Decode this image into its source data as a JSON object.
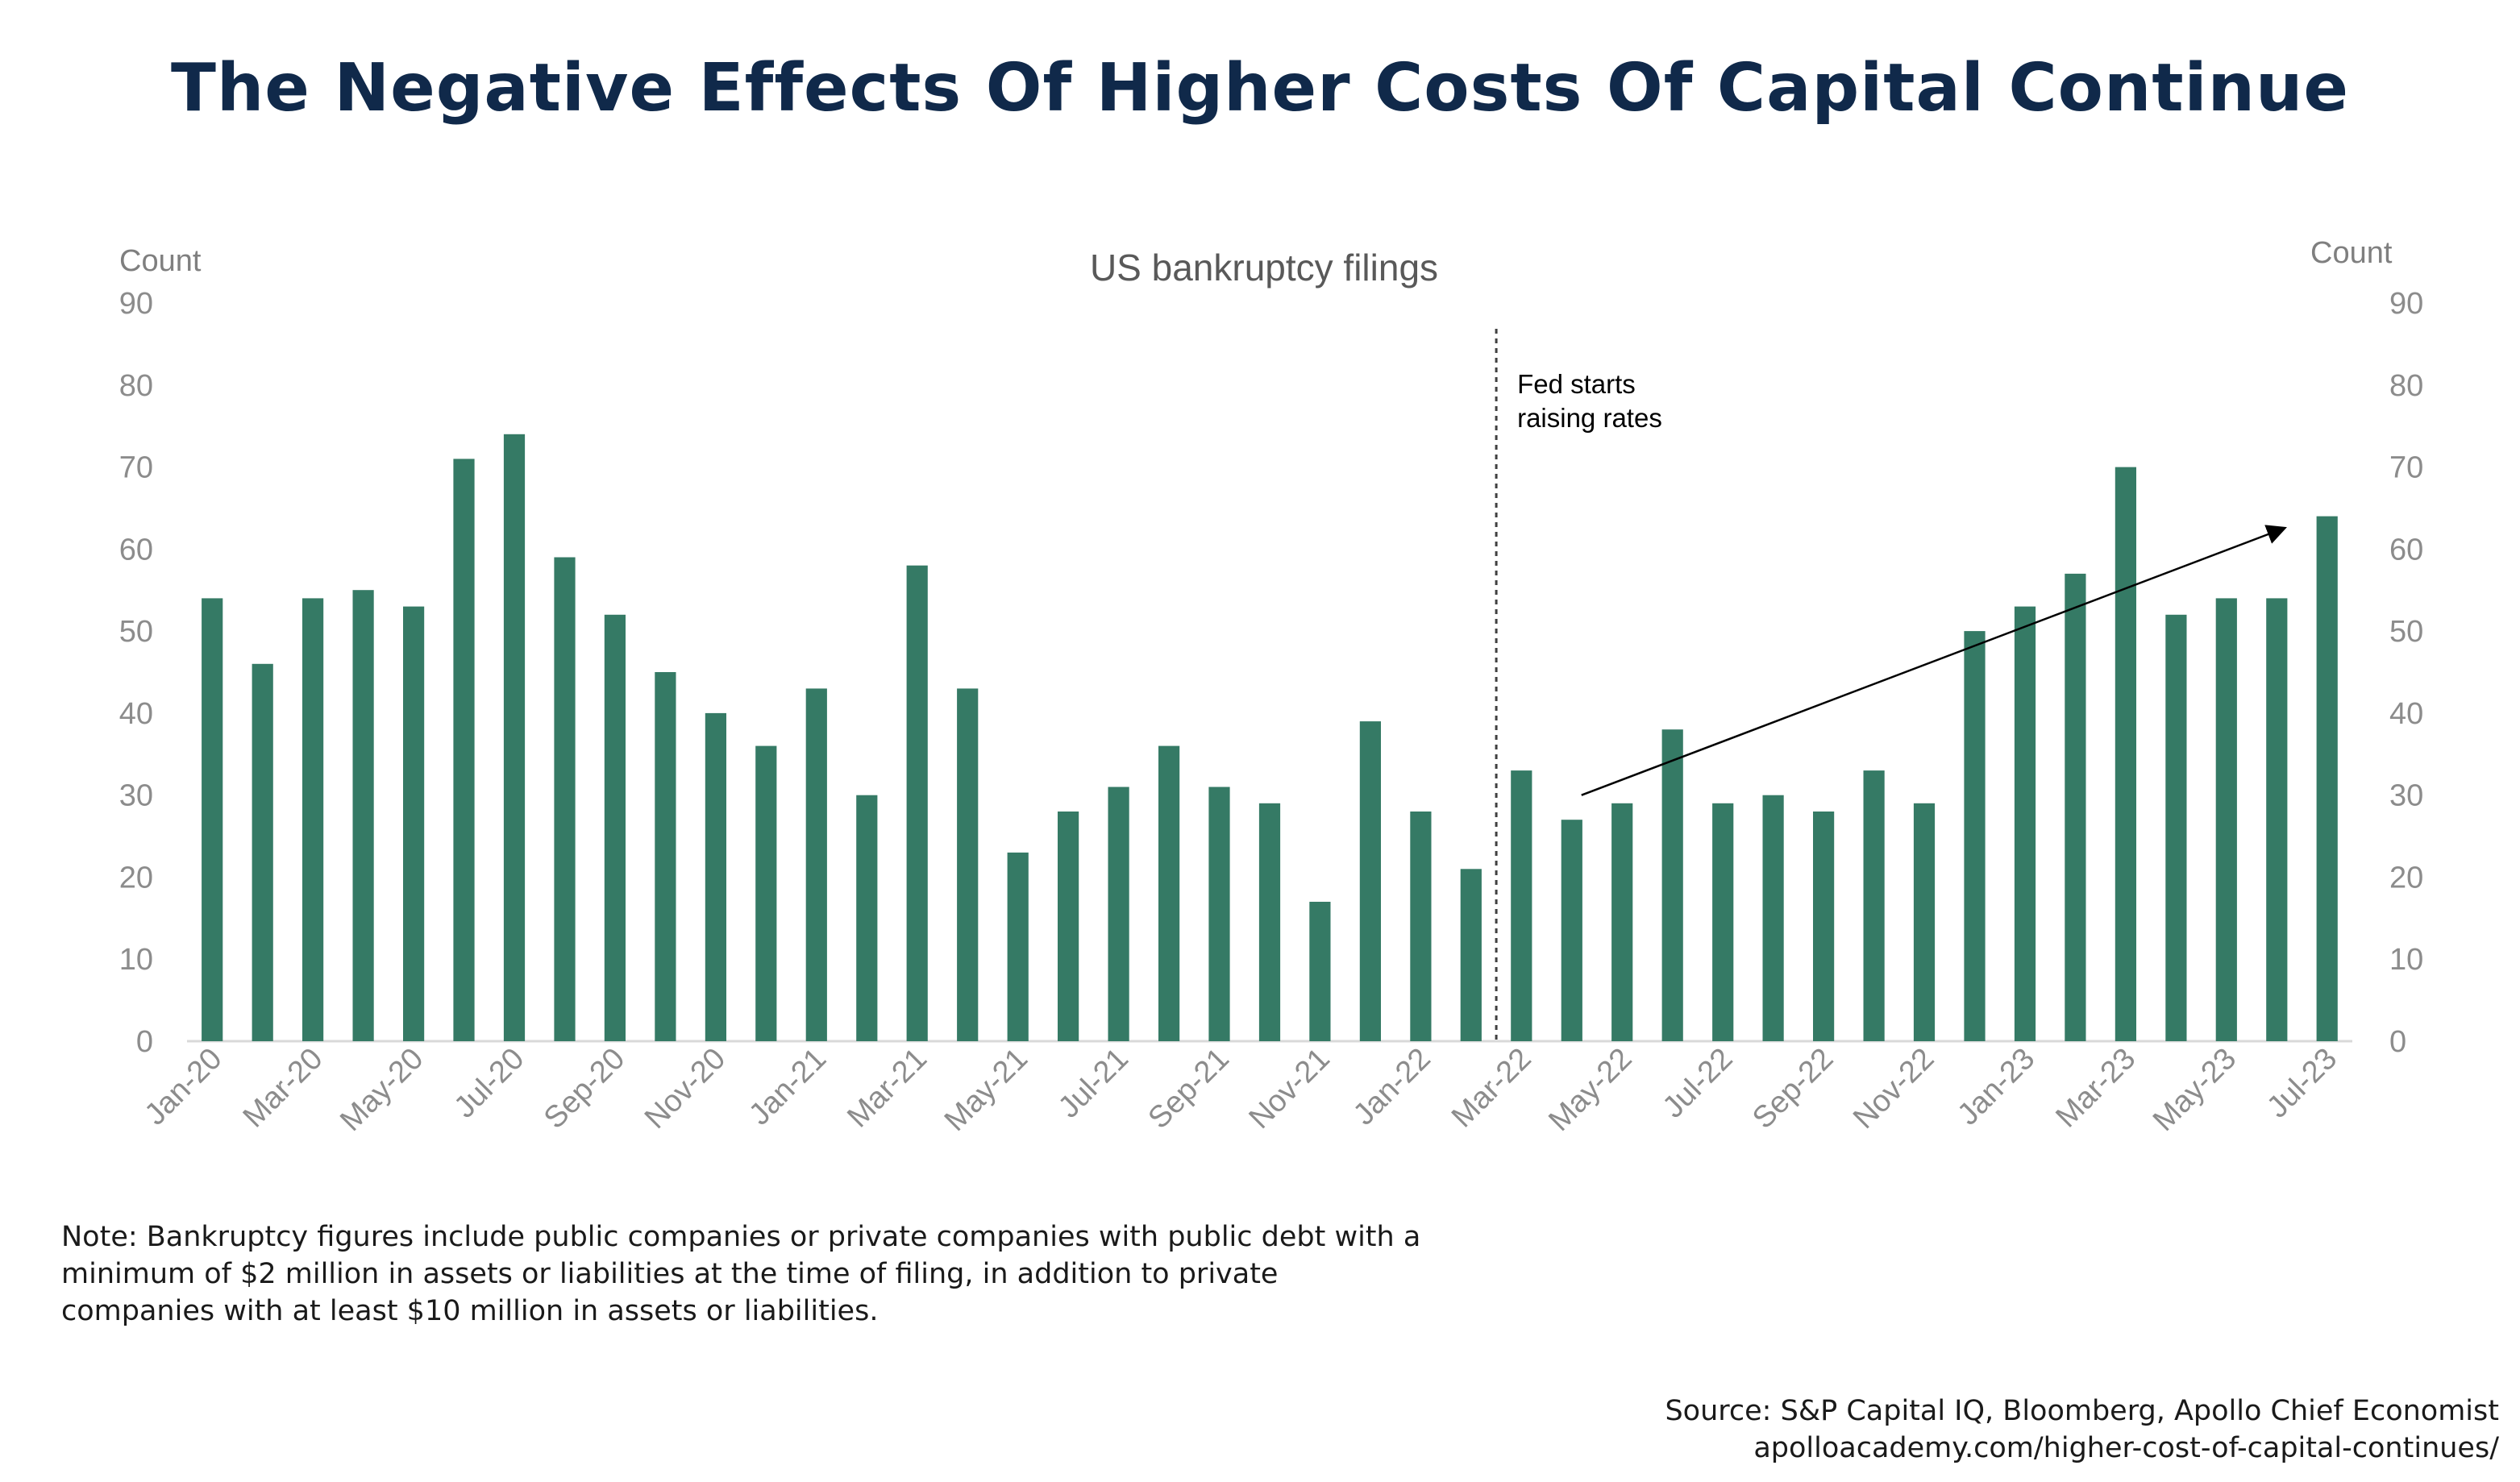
{
  "page": {
    "title": "The Negative Effects Of Higher Costs Of Capital Continue",
    "note": "Note: Bankruptcy figures include public companies or private companies with public debt with a minimum of $2 million in assets or liabilities at the time of filing, in addition to private companies with at least $10 million in assets or liabilities.",
    "source_line1": "Source: S&P Capital IQ, Bloomberg, Apollo Chief Economist",
    "source_line2": "apolloacademy.com/higher-cost-of-capital-continues/"
  },
  "colors": {
    "bar": "#357a65",
    "title": "#10294a",
    "tick": "#8c8c8c"
  },
  "chart_data": {
    "type": "bar",
    "title": "US bankruptcy filings",
    "ylabel_left": "Count",
    "ylabel_right": "Count",
    "ylim": [
      0,
      90
    ],
    "yticks": [
      0,
      10,
      20,
      30,
      40,
      50,
      60,
      70,
      80,
      90
    ],
    "grid": false,
    "categories": [
      "Jan-20",
      "Feb-20",
      "Mar-20",
      "Apr-20",
      "May-20",
      "Jun-20",
      "Jul-20",
      "Aug-20",
      "Sep-20",
      "Oct-20",
      "Nov-20",
      "Dec-20",
      "Jan-21",
      "Feb-21",
      "Mar-21",
      "Apr-21",
      "May-21",
      "Jun-21",
      "Jul-21",
      "Aug-21",
      "Sep-21",
      "Oct-21",
      "Nov-21",
      "Dec-21",
      "Jan-22",
      "Feb-22",
      "Mar-22",
      "Apr-22",
      "May-22",
      "Jun-22",
      "Jul-22",
      "Aug-22",
      "Sep-22",
      "Oct-22",
      "Nov-22",
      "Dec-22",
      "Jan-23",
      "Feb-23",
      "Mar-23",
      "Apr-23",
      "May-23",
      "Jun-23",
      "Jul-23"
    ],
    "tick_labels": [
      "Jan-20",
      "Mar-20",
      "May-20",
      "Jul-20",
      "Sep-20",
      "Nov-20",
      "Jan-21",
      "Mar-21",
      "May-21",
      "Jul-21",
      "Sep-21",
      "Nov-21",
      "Jan-22",
      "Mar-22",
      "May-22",
      "Jul-22",
      "Sep-22",
      "Nov-22",
      "Jan-23",
      "Mar-23",
      "May-23",
      "Jul-23"
    ],
    "series": [
      {
        "values": [
          54,
          46,
          54,
          55,
          53,
          71,
          74,
          59,
          52,
          45,
          40,
          36,
          43,
          30,
          58,
          43,
          23,
          28,
          31,
          36,
          31,
          29,
          17,
          39,
          28,
          21,
          33,
          27,
          29,
          38,
          29,
          30,
          28,
          33,
          29,
          50,
          53,
          57,
          70,
          52,
          54,
          54,
          64
        ]
      }
    ],
    "annotations": [
      {
        "text_line1": "Fed starts",
        "text_line2": "raising rates",
        "at": "Mar-22",
        "style": "dashed vertical line"
      },
      {
        "type": "trend arrow",
        "from": {
          "x": "Apr-22",
          "y": 30
        },
        "to": {
          "x": "Jun-23",
          "y": 62.5
        }
      }
    ]
  }
}
